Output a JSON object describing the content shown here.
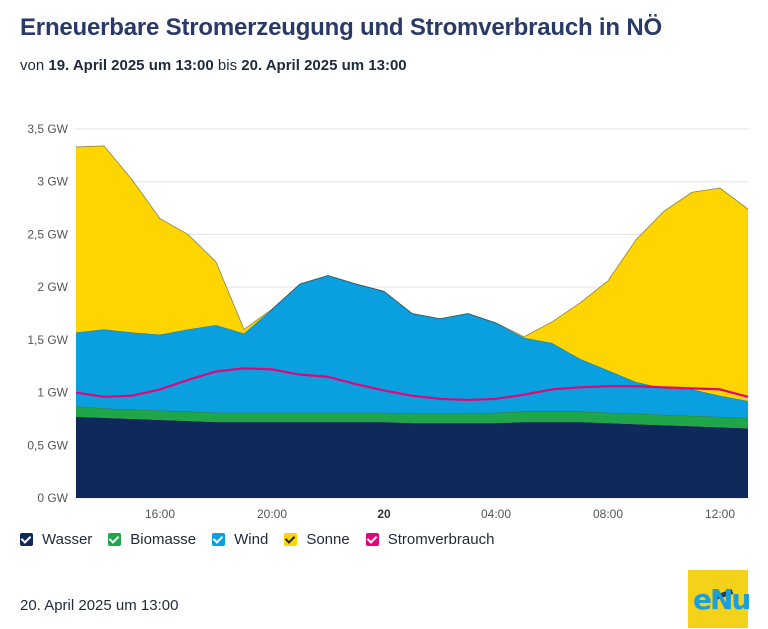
{
  "header": {
    "title": "Erneuerbare Stromerzeugung und Stromverbrauch in NÖ",
    "subtitle_prefix": "von",
    "subtitle_start": "19. April 2025 um 13:00",
    "subtitle_mid": "bis",
    "subtitle_end": "20. April 2025 um 13:00"
  },
  "footer": {
    "date": "20. April 2025 um 13:00",
    "logo_text": "eNu"
  },
  "colors": {
    "wasser": "#0f2a5a",
    "biomasse": "#1fa64a",
    "wind": "#0aa0e0",
    "sonne": "#fed500",
    "stromverbrauch": "#e0067a",
    "grid": "#e3e3e3",
    "axis_text": "#555555"
  },
  "chart_data": {
    "type": "area",
    "stacked": true,
    "title": "Erneuerbare Stromerzeugung und Stromverbrauch in NÖ",
    "unit": "GW",
    "x": [
      13,
      14,
      15,
      16,
      17,
      18,
      19,
      20,
      21,
      22,
      23,
      24,
      25,
      26,
      27,
      28,
      29,
      30,
      31,
      32,
      33,
      34,
      35,
      36,
      37
    ],
    "x_range": [
      13,
      37
    ],
    "ylim": [
      0,
      3.5
    ],
    "y_ticks": [
      0,
      0.5,
      1,
      1.5,
      2,
      2.5,
      3,
      3.5
    ],
    "y_tick_labels": [
      "0 GW",
      "0,5 GW",
      "1 GW",
      "1,5 GW",
      "2 GW",
      "2,5 GW",
      "3 GW",
      "3,5 GW"
    ],
    "x_ticks": [
      16,
      20,
      24,
      28,
      32,
      36
    ],
    "x_tick_labels": [
      "16:00",
      "20:00",
      "20",
      "04:00",
      "08:00",
      "12:00"
    ],
    "x_tick_bold": [
      false,
      false,
      true,
      false,
      false,
      false
    ],
    "series": [
      {
        "name": "Wasser",
        "key": "wasser",
        "values": [
          0.77,
          0.76,
          0.75,
          0.74,
          0.73,
          0.72,
          0.72,
          0.72,
          0.72,
          0.72,
          0.72,
          0.72,
          0.71,
          0.71,
          0.71,
          0.71,
          0.72,
          0.72,
          0.72,
          0.71,
          0.7,
          0.69,
          0.68,
          0.67,
          0.66
        ]
      },
      {
        "name": "Biomasse",
        "key": "biomasse",
        "values": [
          0.1,
          0.09,
          0.09,
          0.09,
          0.09,
          0.09,
          0.09,
          0.09,
          0.09,
          0.09,
          0.09,
          0.09,
          0.09,
          0.09,
          0.09,
          0.1,
          0.1,
          0.1,
          0.1,
          0.1,
          0.1,
          0.1,
          0.1,
          0.1,
          0.1
        ]
      },
      {
        "name": "Wind",
        "key": "wind",
        "values": [
          0.7,
          0.75,
          0.73,
          0.72,
          0.78,
          0.83,
          0.75,
          0.98,
          1.22,
          1.3,
          1.22,
          1.15,
          0.95,
          0.9,
          0.95,
          0.85,
          0.7,
          0.65,
          0.5,
          0.4,
          0.3,
          0.25,
          0.25,
          0.2,
          0.16
        ]
      },
      {
        "name": "Sonne",
        "key": "sonne",
        "values": [
          1.76,
          1.74,
          1.45,
          1.1,
          0.9,
          0.6,
          0.04,
          0.0,
          0.0,
          0.0,
          0.0,
          0.0,
          0.0,
          0.0,
          0.0,
          0.0,
          0.01,
          0.2,
          0.53,
          0.85,
          1.35,
          1.68,
          1.87,
          1.97,
          1.82
        ]
      }
    ],
    "line": {
      "name": "Stromverbrauch",
      "key": "stromverbrauch",
      "values": [
        1.0,
        0.96,
        0.97,
        1.03,
        1.12,
        1.2,
        1.23,
        1.22,
        1.17,
        1.15,
        1.08,
        1.02,
        0.97,
        0.94,
        0.93,
        0.94,
        0.98,
        1.03,
        1.05,
        1.06,
        1.06,
        1.05,
        1.04,
        1.03,
        0.96
      ]
    },
    "legend": [
      "Wasser",
      "Biomasse",
      "Wind",
      "Sonne",
      "Stromverbrauch"
    ],
    "legend_position": "bottom-left"
  }
}
